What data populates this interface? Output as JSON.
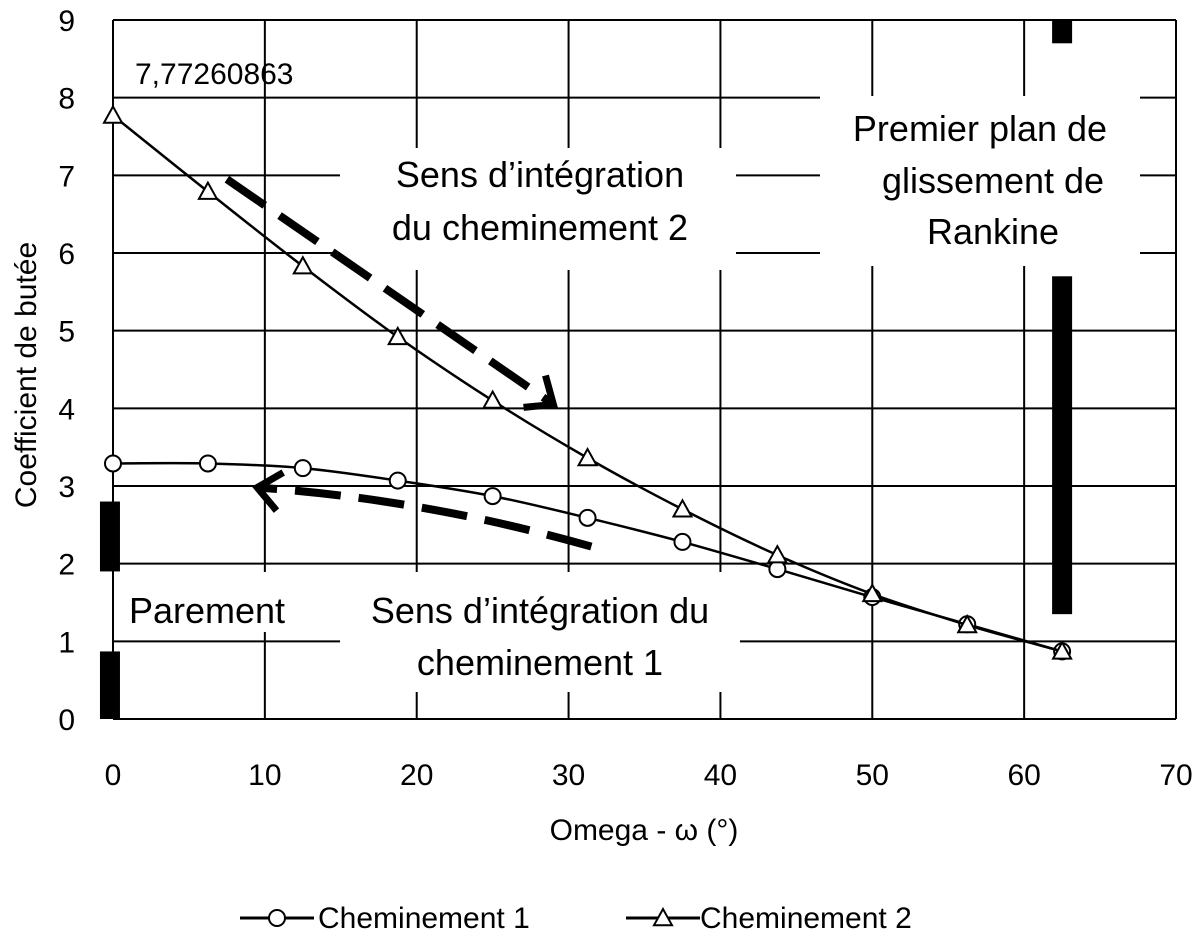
{
  "chart_data": {
    "type": "line",
    "xlabel": "Omega - ω (°)",
    "ylabel": "Coefficient de butée",
    "xlim": [
      0,
      70
    ],
    "ylim": [
      0,
      9
    ],
    "x_ticks": [
      "0",
      "10",
      "20",
      "30",
      "40",
      "50",
      "60",
      "70"
    ],
    "y_ticks": [
      "0",
      "1",
      "2",
      "3",
      "4",
      "5",
      "6",
      "7",
      "8",
      "9"
    ],
    "grid": true,
    "legend_position": "bottom",
    "series": [
      {
        "name": "Cheminement 1",
        "marker": "circle",
        "color": "#000000",
        "x": [
          0,
          6.25,
          12.5,
          18.75,
          25,
          31.25,
          37.5,
          43.75,
          50,
          56.25,
          62.5
        ],
        "y": [
          3.29,
          3.29,
          3.23,
          3.07,
          2.87,
          2.59,
          2.28,
          1.93,
          1.57,
          1.22,
          0.87
        ]
      },
      {
        "name": "Cheminement 2",
        "marker": "triangle",
        "color": "#000000",
        "x": [
          0,
          6.25,
          12.5,
          18.75,
          25,
          31.25,
          37.5,
          43.75,
          50,
          56.25,
          62.5
        ],
        "y": [
          7.77,
          6.79,
          5.83,
          4.92,
          4.1,
          3.36,
          2.7,
          2.11,
          1.61,
          1.21,
          0.87
        ]
      }
    ],
    "annotations": {
      "value_label": "7,77260863",
      "sens_2": [
        "Sens d’intégration",
        "du cheminement 2"
      ],
      "rankine": [
        "Premier plan de",
        "glissement de",
        "Rankine"
      ],
      "parement": "Parement",
      "sens_1": [
        "Sens d’intégration du",
        "cheminement 1"
      ]
    },
    "arrows": {
      "arrow_2": {
        "from": [
          7.5,
          6.95
        ],
        "to": [
          29,
          4.05
        ]
      },
      "arrow_1": {
        "from": [
          31.5,
          2.22
        ],
        "to": [
          9.5,
          2.98
        ]
      }
    },
    "thick_bars": {
      "parement_upper": {
        "x": -0.2,
        "y_from": 1.9,
        "y_to": 2.8
      },
      "parement_lower": {
        "x": -0.2,
        "y_from": 0,
        "y_to": 0.87
      },
      "rankine_upper": {
        "x": 62.5,
        "y_from": 8.7,
        "y_to": 9
      },
      "rankine_lower": {
        "x": 62.5,
        "y_from": 1.35,
        "y_to": 5.7
      }
    }
  }
}
